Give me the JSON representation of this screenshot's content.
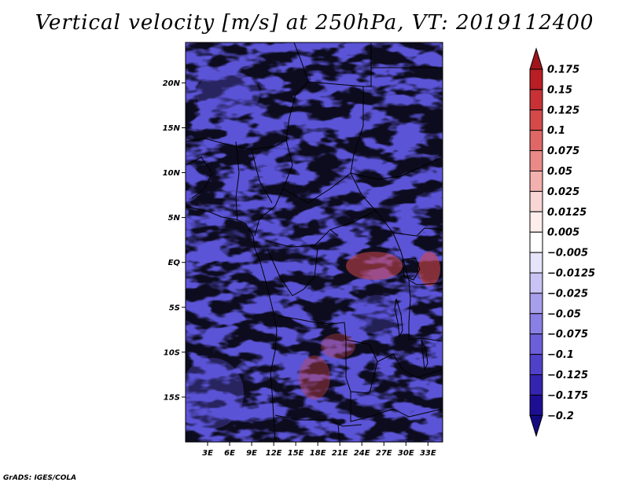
{
  "title": "Vertical velocity [m/s] at 250hPa, VT: 2019112400",
  "credit": "GrADS: IGES/COLA",
  "map": {
    "lat_range": [
      -20,
      24.5
    ],
    "lon_range": [
      0,
      35
    ],
    "lat_ticks": [
      {
        "value": 20,
        "label": "20N"
      },
      {
        "value": 15,
        "label": "15N"
      },
      {
        "value": 10,
        "label": "10N"
      },
      {
        "value": 5,
        "label": "5N"
      },
      {
        "value": 0,
        "label": "EQ"
      },
      {
        "value": -5,
        "label": "5S"
      },
      {
        "value": -10,
        "label": "10S"
      },
      {
        "value": -15,
        "label": "15S"
      }
    ],
    "lon_ticks": [
      {
        "value": 3,
        "label": "3E"
      },
      {
        "value": 6,
        "label": "6E"
      },
      {
        "value": 9,
        "label": "9E"
      },
      {
        "value": 12,
        "label": "12E"
      },
      {
        "value": 15,
        "label": "15E"
      },
      {
        "value": 18,
        "label": "18E"
      },
      {
        "value": 21,
        "label": "21E"
      },
      {
        "value": 24,
        "label": "24E"
      },
      {
        "value": 27,
        "label": "27E"
      },
      {
        "value": 30,
        "label": "30E"
      },
      {
        "value": 33,
        "label": "33E"
      }
    ],
    "field_colors": {
      "upward": "#d2474b",
      "neutral": "#ffffff",
      "downward": "#5b54d6"
    }
  },
  "colorbar": {
    "levels": [
      "0.175",
      "0.15",
      "0.125",
      "0.1",
      "0.075",
      "0.05",
      "0.025",
      "0.0125",
      "0.005",
      "−0.005",
      "−0.0125",
      "−0.025",
      "−0.05",
      "−0.075",
      "−0.1",
      "−0.125",
      "−0.175",
      "−0.2"
    ],
    "colors": [
      "#a0141c",
      "#b91e24",
      "#c83236",
      "#d44a4b",
      "#df6866",
      "#e98a87",
      "#f2b1ae",
      "#f8d6d4",
      "#fdeeed",
      "#ffffff",
      "#e6e4fb",
      "#c8c3f4",
      "#a79fec",
      "#8a7fe4",
      "#6c5fd9",
      "#5042c8",
      "#3524b0",
      "#1e0e94",
      "#130a82"
    ]
  }
}
